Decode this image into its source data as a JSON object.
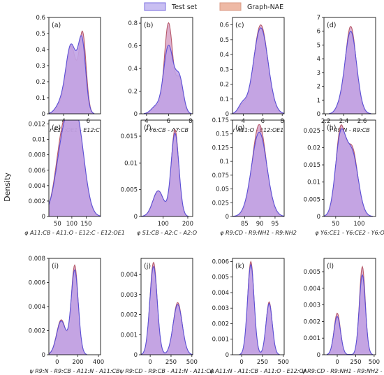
{
  "legend": {
    "entries": [
      {
        "name": "Test set",
        "color": "#7b6fe0"
      },
      {
        "name": "Graph-NAE",
        "color": "#d99a85"
      }
    ]
  },
  "ylabel": "Density",
  "colors": {
    "test_line": "#5b4fd6",
    "test_fill": "#c1a3e6",
    "nae_line": "#b65a6a",
    "nae_fill": "#c26fa5"
  },
  "chart_data": [
    {
      "type": "area",
      "label": "(a)",
      "xlabel": "r E12:OE1 - E12:C",
      "xlim": [
        2.8,
        7.0
      ],
      "ylim": [
        0,
        0.6
      ],
      "xticks": [
        4,
        6
      ],
      "yticks": [
        0,
        0.1,
        0.2,
        0.3,
        0.4,
        0.5,
        0.6
      ],
      "series": [
        {
          "name": "Test set",
          "peaks": [
            [
              3.6,
              0.04,
              0.35
            ],
            [
              4.6,
              0.43,
              0.45
            ],
            [
              5.5,
              0.42,
              0.3
            ]
          ]
        },
        {
          "name": "Graph-NAE",
          "peaks": [
            [
              3.6,
              0.04,
              0.35
            ],
            [
              4.6,
              0.42,
              0.42
            ],
            [
              5.55,
              0.48,
              0.28
            ]
          ]
        }
      ]
    },
    {
      "type": "area",
      "label": "(b)",
      "xlabel": "r Y6:CB - A7:CB",
      "xlim": [
        3.5,
        8.2
      ],
      "ylim": [
        0,
        0.85
      ],
      "xticks": [
        4,
        6,
        8
      ],
      "yticks": [
        0,
        0.2,
        0.4,
        0.6,
        0.8
      ],
      "series": [
        {
          "name": "Test set",
          "peaks": [
            [
              4.8,
              0.06,
              0.4
            ],
            [
              6.0,
              0.6,
              0.45
            ],
            [
              7.0,
              0.3,
              0.35
            ]
          ]
        },
        {
          "name": "Graph-NAE",
          "peaks": [
            [
              4.8,
              0.06,
              0.4
            ],
            [
              6.0,
              0.8,
              0.38
            ],
            [
              7.0,
              0.3,
              0.32
            ]
          ]
        }
      ]
    },
    {
      "type": "area",
      "label": "(c)",
      "xlabel": "r A11:O - E12:OE1",
      "xlim": [
        2.9,
        8.2
      ],
      "ylim": [
        0,
        0.65
      ],
      "xticks": [
        4,
        6,
        8
      ],
      "yticks": [
        0,
        0.1,
        0.2,
        0.3,
        0.4,
        0.5,
        0.6
      ],
      "series": [
        {
          "name": "Test set",
          "peaks": [
            [
              3.9,
              0.06,
              0.4
            ],
            [
              5.8,
              0.58,
              0.75
            ]
          ]
        },
        {
          "name": "Graph-NAE",
          "peaks": [
            [
              3.9,
              0.05,
              0.4
            ],
            [
              5.8,
              0.6,
              0.72
            ]
          ]
        }
      ]
    },
    {
      "type": "area",
      "label": "(d)",
      "xlabel": "r R9:N - R9:CB",
      "xlim": [
        2.18,
        2.75
      ],
      "ylim": [
        0,
        7.0
      ],
      "xticks": [
        2.2,
        2.4,
        2.6
      ],
      "yticks": [
        0,
        1,
        2,
        3,
        4,
        5,
        6,
        7
      ],
      "series": [
        {
          "name": "Test set",
          "peaks": [
            [
              2.34,
              0.25,
              0.04
            ],
            [
              2.475,
              6.0,
              0.065
            ]
          ]
        },
        {
          "name": "Graph-NAE",
          "peaks": [
            [
              2.34,
              0.25,
              0.04
            ],
            [
              2.475,
              6.35,
              0.06
            ]
          ]
        }
      ]
    },
    {
      "type": "area",
      "label": "(e)",
      "xlabel": "φ A11:CB - A11:O - E12:C - E12:OE1",
      "xlim": [
        20,
        200
      ],
      "ylim": [
        0,
        0.0125
      ],
      "xticks": [
        50,
        100,
        150
      ],
      "yticks": [
        0,
        0.002,
        0.004,
        0.006,
        0.008,
        0.01,
        0.012
      ],
      "series": [
        {
          "name": "Test set",
          "peaks": [
            [
              75,
              0.0105,
              28
            ],
            [
              120,
              0.0105,
              25
            ]
          ]
        },
        {
          "name": "Graph-NAE",
          "peaks": [
            [
              72,
              0.0112,
              26
            ],
            [
              120,
              0.0108,
              24
            ]
          ]
        }
      ]
    },
    {
      "type": "area",
      "label": "(f)",
      "xlabel": "φ S1:CB - A2:C - A2:O",
      "xlim": [
        10,
        220
      ],
      "ylim": [
        0,
        0.018
      ],
      "xticks": [
        100,
        200
      ],
      "yticks": [
        0,
        0.005,
        0.01,
        0.015
      ],
      "series": [
        {
          "name": "Test set",
          "peaks": [
            [
              80,
              0.0048,
              22
            ],
            [
              148,
              0.0155,
              16
            ]
          ]
        },
        {
          "name": "Graph-NAE",
          "peaks": [
            [
              80,
              0.0048,
              22
            ],
            [
              148,
              0.0162,
              15
            ]
          ]
        }
      ]
    },
    {
      "type": "area",
      "label": "(g)",
      "xlabel": "φ R9:CD - R9:NH1 - R9:NH2",
      "xlim": [
        81,
        98
      ],
      "ylim": [
        0,
        0.175
      ],
      "xticks": [
        85,
        90,
        95
      ],
      "yticks": [
        0,
        0.025,
        0.05,
        0.075,
        0.1,
        0.125,
        0.15,
        0.175
      ],
      "series": [
        {
          "name": "Test set",
          "peaks": [
            [
              89.8,
              0.153,
              2.5
            ]
          ]
        },
        {
          "name": "Graph-NAE",
          "peaks": [
            [
              89.8,
              0.167,
              2.3
            ]
          ]
        }
      ]
    },
    {
      "type": "area",
      "label": "(h)",
      "xlabel": "φ Y6:CE1 - Y6:CE2 - Y6:O",
      "xlim": [
        25,
        135
      ],
      "ylim": [
        0,
        0.028
      ],
      "xticks": [
        50,
        100
      ],
      "yticks": [
        0,
        0.005,
        0.01,
        0.015,
        0.02,
        0.025
      ],
      "series": [
        {
          "name": "Test set",
          "peaks": [
            [
              60,
              0.022,
              11
            ],
            [
              85,
              0.018,
              13
            ]
          ]
        },
        {
          "name": "Graph-NAE",
          "peaks": [
            [
              60,
              0.024,
              10
            ],
            [
              85,
              0.0195,
              12
            ]
          ]
        }
      ]
    },
    {
      "type": "area",
      "label": "(i)",
      "xlabel": "ψ R9:N - R9:CB - A11:N - A11:CB",
      "xlim": [
        -80,
        420
      ],
      "ylim": [
        0,
        0.008
      ],
      "xticks": [
        0,
        200,
        400
      ],
      "yticks": [
        0,
        0.002,
        0.004,
        0.006,
        0.008
      ],
      "series": [
        {
          "name": "Test set",
          "peaks": [
            [
              40,
              0.0028,
              45
            ],
            [
              170,
              0.007,
              35
            ]
          ]
        },
        {
          "name": "Graph-NAE",
          "peaks": [
            [
              40,
              0.0029,
              45
            ],
            [
              170,
              0.0074,
              33
            ]
          ]
        }
      ]
    },
    {
      "type": "area",
      "label": "(j)",
      "xlabel": "ψ R9:CD - R9:CB - A11:N - A11:CA",
      "xlim": [
        -110,
        510
      ],
      "ylim": [
        0,
        0.0048
      ],
      "xticks": [
        0,
        250,
        500
      ],
      "yticks": [
        0,
        0.001,
        0.002,
        0.003,
        0.004
      ],
      "series": [
        {
          "name": "Test set",
          "peaks": [
            [
              40,
              0.0044,
              45
            ],
            [
              330,
              0.0025,
              55
            ]
          ]
        },
        {
          "name": "Graph-NAE",
          "peaks": [
            [
              40,
              0.0046,
              43
            ],
            [
              330,
              0.0026,
              53
            ]
          ]
        }
      ]
    },
    {
      "type": "area",
      "label": "(k)",
      "xlabel": "ψ A11:N - A11:CB - A11:O - E12:CA",
      "xlim": [
        -110,
        510
      ],
      "ylim": [
        0,
        0.0062
      ],
      "xticks": [
        0,
        250,
        500
      ],
      "yticks": [
        0,
        0.001,
        0.002,
        0.003,
        0.004,
        0.005,
        0.006
      ],
      "series": [
        {
          "name": "Test set",
          "peaks": [
            [
              110,
              0.0058,
              40
            ],
            [
              330,
              0.0033,
              38
            ]
          ]
        },
        {
          "name": "Graph-NAE",
          "peaks": [
            [
              110,
              0.006,
              38
            ],
            [
              330,
              0.0034,
              36
            ]
          ]
        }
      ]
    },
    {
      "type": "area",
      "label": "(l)",
      "xlabel": "ψ R9:CD - R9:NH1 - R9:NH2 - R9:O",
      "xlim": [
        -180,
        520
      ],
      "ylim": [
        0,
        0.0058
      ],
      "xticks": [
        0,
        250,
        500
      ],
      "yticks": [
        0,
        0.001,
        0.002,
        0.003,
        0.004,
        0.005
      ],
      "series": [
        {
          "name": "Test set",
          "peaks": [
            [
              0,
              0.0023,
              45
            ],
            [
              340,
              0.0048,
              42
            ]
          ]
        },
        {
          "name": "Graph-NAE",
          "peaks": [
            [
              0,
              0.0025,
              43
            ],
            [
              340,
              0.0053,
              40
            ]
          ]
        }
      ]
    }
  ]
}
